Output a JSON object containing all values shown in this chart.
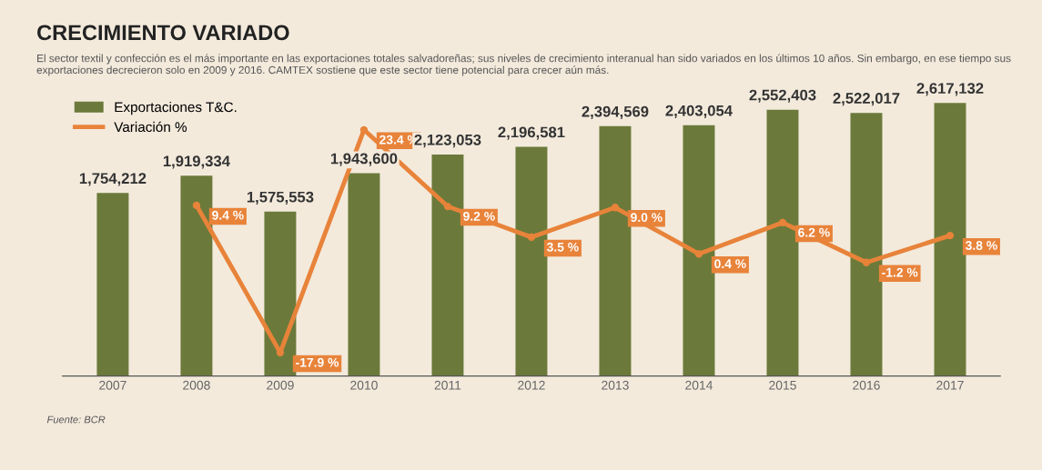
{
  "chart_data": {
    "type": "bar",
    "title": "CRECIMIENTO VARIADO",
    "subtitle": "El sector textil y confección es el más importante en las exportaciones totales salvadoreñas; sus niveles de crecimiento interanual han sido variados en los últimos 10 años. Sin embargo, en ese tiempo sus exportaciones decrecieron solo en 2009 y 2016. CAMTEX sostiene que este sector tiene potencial para crecer aún más.",
    "categories": [
      "2007",
      "2008",
      "2009",
      "2010",
      "2011",
      "2012",
      "2013",
      "2014",
      "2015",
      "2016",
      "2017"
    ],
    "series": [
      {
        "name": "Exportaciones T&C.",
        "color": "#6b7a3a",
        "values": [
          1754212,
          1919334,
          1575553,
          1943600,
          2123053,
          2196581,
          2394569,
          2403054,
          2552403,
          2522017,
          2617132
        ],
        "value_labels": [
          "1,754,212",
          "1,919,334",
          "1,575,553",
          "1,943,600",
          "2,123,053",
          "2,196,581",
          "2,394,569",
          "2,403,054",
          "2,552,403",
          "2,522,017",
          "2,617,132"
        ]
      },
      {
        "name": "Variación %",
        "type": "line",
        "axis": "y2",
        "color": "#e8833a",
        "values": [
          null,
          9.4,
          -17.9,
          23.4,
          9.2,
          3.5,
          9.0,
          0.4,
          6.2,
          -1.2,
          3.8
        ],
        "value_labels": [
          null,
          "9.4 %",
          "-17.9 %",
          "23.4 %",
          "9.2 %",
          "3.5 %",
          "9.0 %",
          "0.4 %",
          "6.2 %",
          "-1.2 %",
          "3.8 %"
        ]
      }
    ],
    "tick_labels": "x",
    "legend": "top left",
    "marker": "circle",
    "line_style": "solid",
    "annotations": [
      "Fuente: BCR"
    ]
  }
}
